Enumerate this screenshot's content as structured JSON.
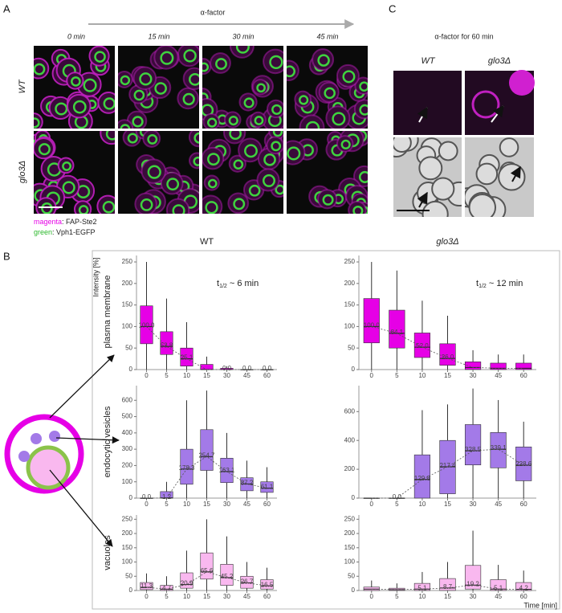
{
  "panel_a": {
    "label": "A",
    "arrow_label": "α-factor",
    "times": [
      "0 min",
      "15 min",
      "30 min",
      "45 min"
    ],
    "rows": [
      "WT",
      "glo3Δ"
    ],
    "legend": [
      {
        "color_word": "magenta",
        "text": ": FAP-Ste2"
      },
      {
        "color_word": "green",
        "text": ": Vph1-EGFP"
      }
    ]
  },
  "panel_c": {
    "label": "C",
    "title": "α-factor for 60 min",
    "columns": [
      "WT",
      "glo3Δ"
    ]
  },
  "panel_b": {
    "label": "B",
    "y_label": "Intensity [%]",
    "x_label": "Time [min]",
    "rows": [
      "plasma membrane",
      "endocytic vesicles",
      "vacuoles"
    ]
  },
  "chart_data": [
    {
      "type": "box",
      "title": "WT",
      "annotation": {
        "t": "t",
        "sub": "1/2",
        "rest": " ~ 6 min"
      },
      "categories": [
        "0",
        "5",
        "10",
        "15",
        "30",
        "45",
        "60"
      ],
      "color": "#e600e6",
      "q1": [
        60,
        35,
        8,
        0,
        0,
        0,
        0
      ],
      "median": [
        100,
        53.8,
        25.1,
        0,
        0,
        0,
        0
      ],
      "q3": [
        148,
        88,
        50,
        12,
        3,
        0,
        0
      ],
      "whisker_low": [
        0,
        0,
        0,
        0,
        0,
        0,
        0
      ],
      "whisker_high": [
        250,
        165,
        110,
        30,
        8,
        0,
        0
      ],
      "value_labels": [
        "100.0",
        "53.8",
        "25.1",
        null,
        "0.0",
        "0.0",
        "0.0"
      ],
      "ylim": [
        0,
        265
      ],
      "yticks": [
        0,
        50,
        100,
        150,
        200,
        250
      ]
    },
    {
      "type": "box",
      "title": "glo3Δ",
      "annotation": {
        "t": "t",
        "sub": "1/2",
        "rest": " ~ 12 min"
      },
      "categories": [
        "0",
        "5",
        "10",
        "15",
        "30",
        "45",
        "60"
      ],
      "color": "#e600e6",
      "q1": [
        62,
        50,
        28,
        10,
        0,
        0,
        0
      ],
      "median": [
        100,
        84.1,
        52,
        26,
        5,
        3,
        3
      ],
      "q3": [
        165,
        138,
        85,
        60,
        18,
        15,
        15
      ],
      "whisker_low": [
        0,
        0,
        0,
        0,
        0,
        0,
        0
      ],
      "whisker_high": [
        250,
        230,
        160,
        125,
        45,
        35,
        35
      ],
      "value_labels": [
        "100.0",
        "84.1",
        "52.0",
        "26.0",
        null,
        null,
        null
      ],
      "ylim": [
        0,
        265
      ],
      "yticks": [
        0,
        50,
        100,
        150,
        200,
        250
      ]
    },
    {
      "type": "box",
      "categories": [
        "0",
        "5",
        "10",
        "15",
        "30",
        "45",
        "60"
      ],
      "color": "#a37ae8",
      "q1": [
        0,
        0,
        85,
        170,
        95,
        45,
        35
      ],
      "median": [
        0,
        1.2,
        178.3,
        254.7,
        163.1,
        87.2,
        61.1
      ],
      "q3": [
        0,
        40,
        300,
        420,
        245,
        125,
        100
      ],
      "whisker_low": [
        0,
        0,
        0,
        0,
        0,
        0,
        0
      ],
      "whisker_high": [
        0,
        100,
        600,
        660,
        400,
        230,
        190
      ],
      "value_labels": [
        "0.0",
        "1.2",
        "178.3",
        "254.7",
        "163.1",
        "87.2",
        "61.1"
      ],
      "ylim": [
        0,
        690
      ],
      "yticks": [
        0,
        100,
        200,
        300,
        400,
        500,
        600
      ]
    },
    {
      "type": "box",
      "categories": [
        "0",
        "5",
        "10",
        "15",
        "30",
        "45",
        "60"
      ],
      "color": "#a37ae8",
      "q1": [
        0,
        0,
        0,
        30,
        230,
        210,
        120
      ],
      "median": [
        0,
        0,
        129.8,
        217.4,
        328.5,
        339.1,
        228.6
      ],
      "q3": [
        0,
        0,
        300,
        400,
        510,
        455,
        355
      ],
      "whisker_low": [
        0,
        0,
        0,
        0,
        0,
        0,
        0
      ],
      "whisker_high": [
        0,
        0,
        610,
        650,
        760,
        680,
        530
      ],
      "value_labels": [
        null,
        "0.0",
        "129.8",
        "217.4",
        "328.5",
        "339.1",
        "228.6"
      ],
      "ylim": [
        0,
        780
      ],
      "yticks": [
        0,
        200,
        400,
        600
      ]
    },
    {
      "type": "box",
      "categories": [
        "0",
        "5",
        "10",
        "15",
        "30",
        "45",
        "60"
      ],
      "color": "#f9b8ef",
      "q1": [
        3,
        0,
        8,
        40,
        18,
        8,
        5
      ],
      "median": [
        11.3,
        4.7,
        20.9,
        65.6,
        45.2,
        26.7,
        16.5
      ],
      "q3": [
        28,
        18,
        62,
        132,
        92,
        50,
        38
      ],
      "whisker_low": [
        0,
        0,
        0,
        0,
        0,
        0,
        0
      ],
      "whisker_high": [
        60,
        50,
        140,
        250,
        190,
        100,
        80
      ],
      "value_labels": [
        "11.3",
        "4.7",
        "20.9",
        "65.6",
        "45.2",
        "26.7",
        "16.5"
      ],
      "ylim": [
        0,
        265
      ],
      "yticks": [
        0,
        50,
        100,
        150,
        200,
        250
      ]
    },
    {
      "type": "box",
      "categories": [
        "0",
        "5",
        "10",
        "15",
        "30",
        "45",
        "60"
      ],
      "color": "#f9b8ef",
      "q1": [
        0,
        0,
        0,
        0,
        5,
        0,
        0
      ],
      "median": [
        5,
        3,
        5.1,
        8.7,
        19.2,
        5.1,
        4.2
      ],
      "q3": [
        12,
        8,
        25,
        42,
        88,
        38,
        28
      ],
      "whisker_low": [
        0,
        0,
        0,
        0,
        0,
        0,
        0
      ],
      "whisker_high": [
        35,
        25,
        65,
        100,
        210,
        90,
        70
      ],
      "value_labels": [
        null,
        null,
        "5.1",
        "8.7",
        "19.2",
        "5.1",
        "4.2"
      ],
      "ylim": [
        0,
        265
      ],
      "yticks": [
        0,
        50,
        100,
        150,
        200,
        250
      ]
    }
  ]
}
